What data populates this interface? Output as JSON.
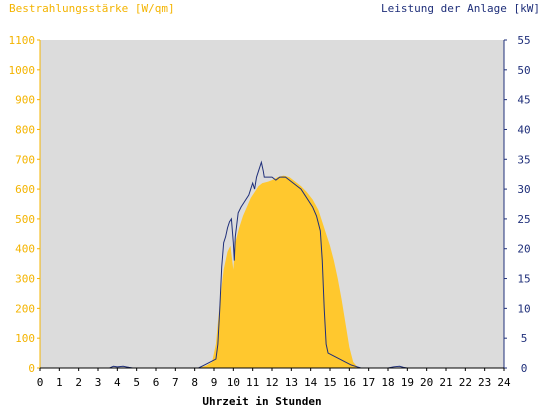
{
  "chart_data": {
    "type": "area",
    "left_title": "Bestrahlungsstärke [W/qm]",
    "right_title": "Leistung der Anlage [kW]",
    "xlabel": "Uhrzeit in Stunden",
    "xlim": [
      0,
      24
    ],
    "ylim_left": [
      0,
      1100
    ],
    "ylim_right": [
      0,
      55
    ],
    "x_ticks": [
      "0",
      "1",
      "2",
      "3",
      "4",
      "5",
      "6",
      "7",
      "8",
      "9",
      "10",
      "11",
      "12",
      "13",
      "14",
      "15",
      "16",
      "17",
      "18",
      "19",
      "20",
      "21",
      "22",
      "23",
      "24"
    ],
    "left_ticks": [
      "0",
      "100",
      "200",
      "300",
      "400",
      "500",
      "600",
      "700",
      "800",
      "900",
      "1000",
      "1100"
    ],
    "right_ticks": [
      "0",
      "5",
      "10",
      "15",
      "20",
      "25",
      "30",
      "35",
      "40",
      "45",
      "50",
      "55"
    ],
    "grid": false,
    "series": [
      {
        "axis": "left",
        "color": "#ffc82e",
        "points": [
          [
            0,
            0
          ],
          [
            8.0,
            0
          ],
          [
            8.3,
            2
          ],
          [
            8.6,
            8
          ],
          [
            8.9,
            20
          ],
          [
            9.1,
            80
          ],
          [
            9.3,
            220
          ],
          [
            9.5,
            330
          ],
          [
            9.7,
            390
          ],
          [
            9.85,
            410
          ],
          [
            10.0,
            330
          ],
          [
            10.1,
            420
          ],
          [
            10.3,
            470
          ],
          [
            10.5,
            510
          ],
          [
            10.7,
            540
          ],
          [
            10.9,
            570
          ],
          [
            11.1,
            590
          ],
          [
            11.3,
            610
          ],
          [
            11.5,
            620
          ],
          [
            11.8,
            625
          ],
          [
            12.0,
            630
          ],
          [
            12.3,
            640
          ],
          [
            12.6,
            645
          ],
          [
            12.9,
            640
          ],
          [
            13.2,
            625
          ],
          [
            13.5,
            610
          ],
          [
            13.8,
            590
          ],
          [
            14.1,
            565
          ],
          [
            14.4,
            530
          ],
          [
            14.6,
            490
          ],
          [
            14.8,
            450
          ],
          [
            15.0,
            410
          ],
          [
            15.2,
            360
          ],
          [
            15.4,
            300
          ],
          [
            15.6,
            230
          ],
          [
            15.8,
            150
          ],
          [
            16.0,
            70
          ],
          [
            16.2,
            20
          ],
          [
            16.4,
            5
          ],
          [
            16.6,
            0
          ],
          [
            24,
            0
          ]
        ]
      },
      {
        "axis": "right",
        "color": "#1f2f7a",
        "points": [
          [
            0,
            0
          ],
          [
            3.6,
            0
          ],
          [
            3.8,
            0.3
          ],
          [
            4.0,
            0.2
          ],
          [
            4.3,
            0.3
          ],
          [
            4.6,
            0.1
          ],
          [
            4.8,
            0
          ],
          [
            8.2,
            0
          ],
          [
            8.5,
            0.5
          ],
          [
            8.8,
            1
          ],
          [
            9.1,
            1.5
          ],
          [
            9.2,
            4
          ],
          [
            9.3,
            10
          ],
          [
            9.4,
            17
          ],
          [
            9.5,
            21
          ],
          [
            9.6,
            22
          ],
          [
            9.7,
            23.5
          ],
          [
            9.8,
            24.5
          ],
          [
            9.9,
            25
          ],
          [
            10.0,
            21
          ],
          [
            10.05,
            18
          ],
          [
            10.1,
            22
          ],
          [
            10.25,
            26
          ],
          [
            10.4,
            27
          ],
          [
            10.6,
            28
          ],
          [
            10.8,
            29
          ],
          [
            10.9,
            30
          ],
          [
            11.0,
            31
          ],
          [
            11.1,
            30
          ],
          [
            11.2,
            32
          ],
          [
            11.3,
            33
          ],
          [
            11.45,
            34.5
          ],
          [
            11.55,
            33
          ],
          [
            11.6,
            32
          ],
          [
            11.8,
            32
          ],
          [
            12.0,
            32
          ],
          [
            12.2,
            31.5
          ],
          [
            12.4,
            32
          ],
          [
            12.7,
            32
          ],
          [
            12.9,
            31.5
          ],
          [
            13.1,
            31
          ],
          [
            13.3,
            30.5
          ],
          [
            13.5,
            30
          ],
          [
            13.7,
            29
          ],
          [
            13.9,
            28
          ],
          [
            14.1,
            27
          ],
          [
            14.3,
            25.5
          ],
          [
            14.5,
            23
          ],
          [
            14.6,
            18
          ],
          [
            14.7,
            10
          ],
          [
            14.8,
            4
          ],
          [
            14.9,
            2.5
          ],
          [
            15.2,
            2
          ],
          [
            15.5,
            1.5
          ],
          [
            15.8,
            1
          ],
          [
            16.1,
            0.5
          ],
          [
            16.4,
            0.2
          ],
          [
            16.6,
            0
          ],
          [
            18.0,
            0
          ],
          [
            18.3,
            0.2
          ],
          [
            18.6,
            0.3
          ],
          [
            18.8,
            0.1
          ],
          [
            19.0,
            0
          ],
          [
            24,
            0
          ]
        ]
      }
    ]
  }
}
